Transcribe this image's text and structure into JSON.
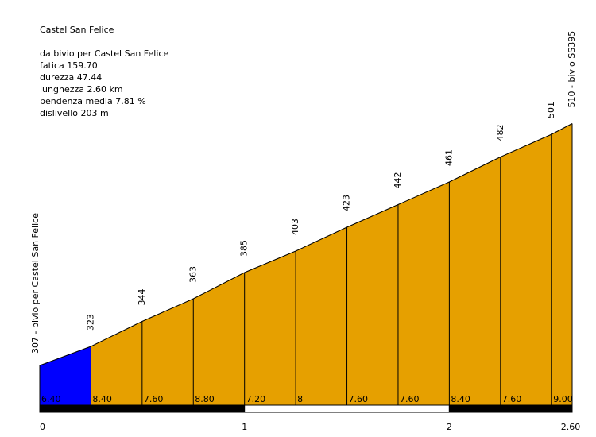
{
  "title": "Castel San Felice",
  "info": [
    "da bivio per Castel San Felice",
    "fatica 159.70",
    "durezza 47.44",
    "lunghezza 2.60 km",
    "pendenza media 7.81 %",
    "dislivello 203 m"
  ],
  "chart_data": {
    "type": "area",
    "title": "Castel San Felice",
    "x_unit": "km",
    "y_unit": "m",
    "x": [
      0,
      0.25,
      0.5,
      0.75,
      1.0,
      1.25,
      1.5,
      1.75,
      2.0,
      2.25,
      2.5,
      2.6
    ],
    "elevations": [
      307,
      323,
      344,
      363,
      385,
      403,
      423,
      442,
      461,
      482,
      501,
      510
    ],
    "elevation_labels": [
      "307 - bivio per Castel San Felice",
      "323",
      "344",
      "363",
      "385",
      "403",
      "423",
      "442",
      "461",
      "482",
      "501",
      "510 - bivio SS395"
    ],
    "segment_gradients": [
      "6.40",
      "8.40",
      "7.60",
      "8.80",
      "7.20",
      "8",
      "7.60",
      "7.60",
      "8.40",
      "7.60",
      "9.00"
    ],
    "segment_colors": [
      "#0000ff",
      "#e6a000",
      "#e6a000",
      "#e6a000",
      "#e6a000",
      "#e6a000",
      "#e6a000",
      "#e6a000",
      "#e6a000",
      "#e6a000",
      "#e6a000"
    ],
    "x_ticks": [
      "0",
      "1",
      "2",
      "2.60"
    ],
    "x_tick_values": [
      0,
      1,
      2,
      2.6
    ],
    "xlim": [
      0,
      2.6
    ]
  }
}
